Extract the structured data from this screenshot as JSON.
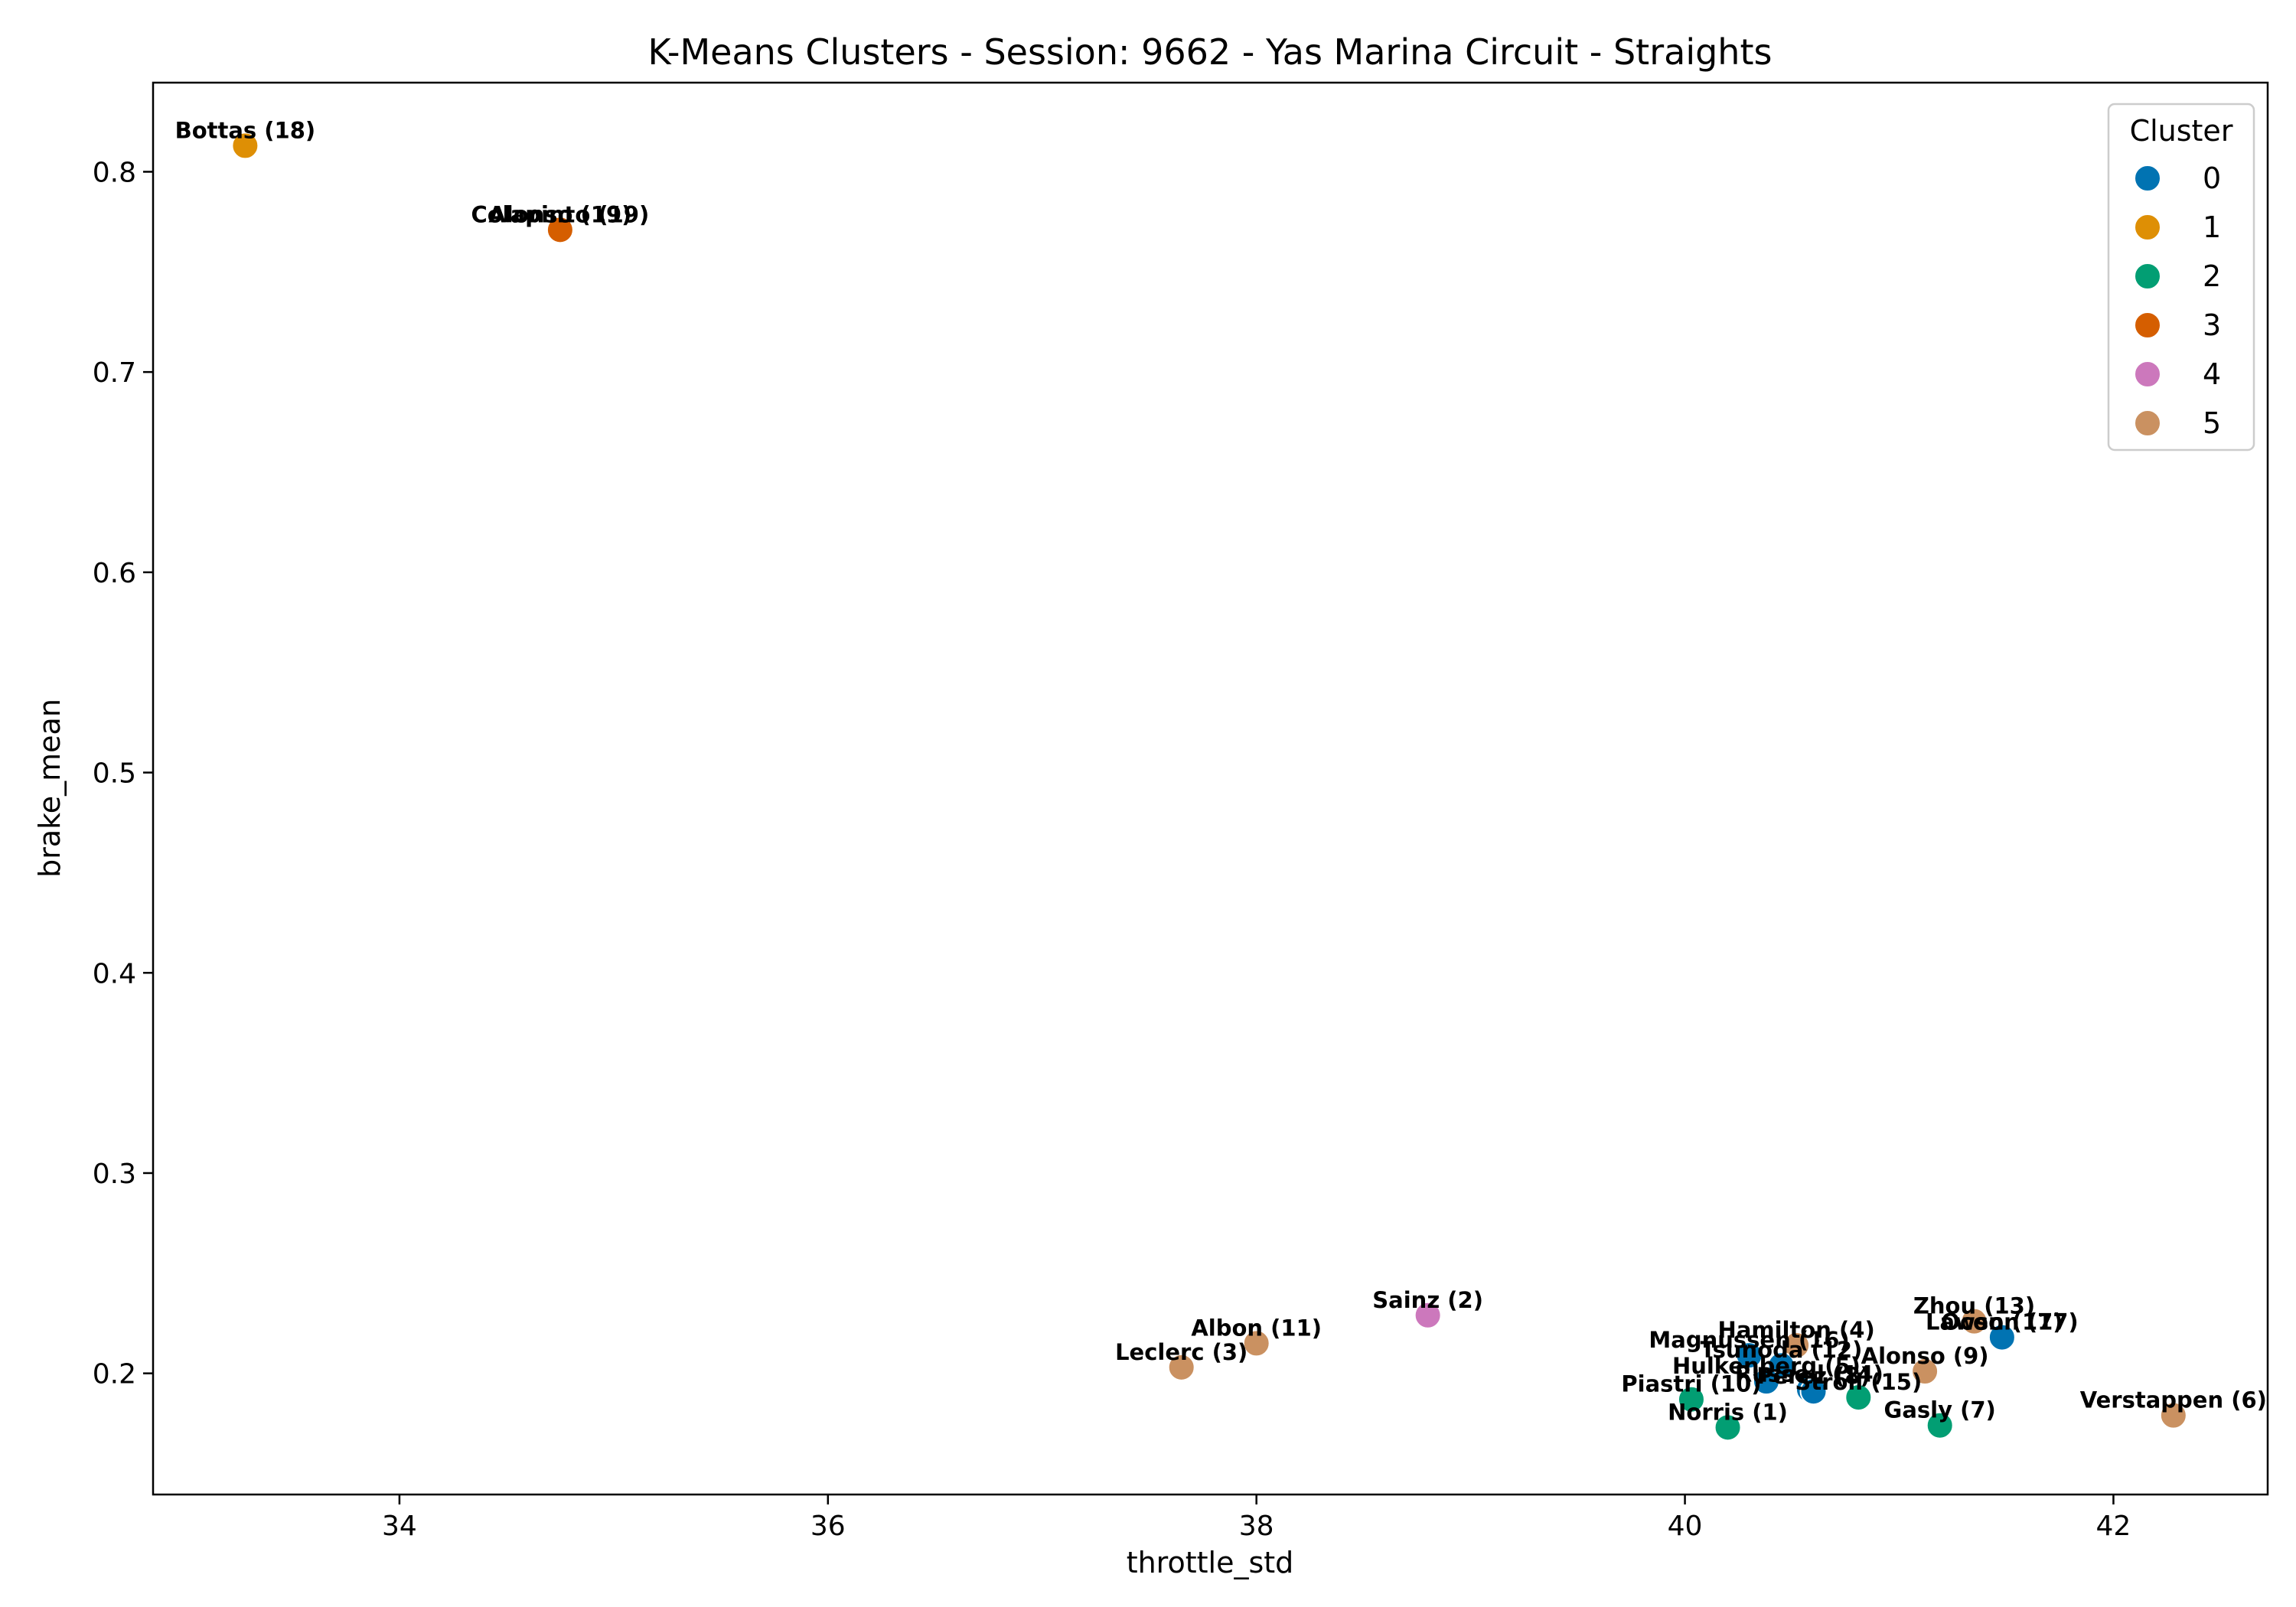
{
  "chart_data": {
    "type": "scatter",
    "title": "K-Means Clusters - Session: 9662 - Yas Marina Circuit - Straights",
    "xlabel": "throttle_std",
    "ylabel": "brake_mean",
    "xlim": [
      32.85,
      42.72
    ],
    "ylim": [
      0.1395,
      0.8445
    ],
    "xticks": [
      34,
      36,
      38,
      40,
      42
    ],
    "yticks": [
      0.2,
      0.3,
      0.4,
      0.5,
      0.6,
      0.7,
      0.8
    ],
    "xtick_labels": [
      "34",
      "36",
      "38",
      "40",
      "42"
    ],
    "ytick_labels": [
      "0.2",
      "0.3",
      "0.4",
      "0.5",
      "0.6",
      "0.7",
      "0.8"
    ],
    "grid": false,
    "legend": {
      "title": "Cluster",
      "placement": "top-right",
      "entries": [
        {
          "label": "0",
          "color": "#0173b2"
        },
        {
          "label": "1",
          "color": "#de8f05"
        },
        {
          "label": "2",
          "color": "#029e73"
        },
        {
          "label": "3",
          "color": "#d55e00"
        },
        {
          "label": "4",
          "color": "#cc78bc"
        },
        {
          "label": "5",
          "color": "#ca9161"
        }
      ]
    },
    "points": [
      {
        "label": "Bottas (18)",
        "x": 33.28,
        "y": 0.813,
        "cluster": 1
      },
      {
        "label": "Colapinto (19)",
        "x": 34.75,
        "y": 0.771,
        "cluster": 3
      },
      {
        "label": "Alonso (19)",
        "x": 34.75,
        "y": 0.771,
        "cluster": 3
      },
      {
        "label": "Sainz (2)",
        "x": 38.8,
        "y": 0.229,
        "cluster": 4
      },
      {
        "label": "Albon (11)",
        "x": 38.0,
        "y": 0.215,
        "cluster": 5
      },
      {
        "label": "Leclerc (3)",
        "x": 37.65,
        "y": 0.203,
        "cluster": 5
      },
      {
        "label": "Zhou (13)",
        "x": 41.35,
        "y": 0.226,
        "cluster": 5
      },
      {
        "label": "Lawson (17)",
        "x": 41.48,
        "y": 0.218,
        "cluster": 0
      },
      {
        "label": "Ocon (17)",
        "x": 41.48,
        "y": 0.218,
        "cluster": 0
      },
      {
        "label": "Hamilton (4)",
        "x": 40.52,
        "y": 0.214,
        "cluster": 5
      },
      {
        "label": "Magnussen (16)",
        "x": 40.3,
        "y": 0.209,
        "cluster": 0
      },
      {
        "label": "Tsunoda (12)",
        "x": 40.45,
        "y": 0.204,
        "cluster": 0
      },
      {
        "label": "Alonso (9)",
        "x": 41.12,
        "y": 0.201,
        "cluster": 5
      },
      {
        "label": "Hulkenberg (5)",
        "x": 40.38,
        "y": 0.196,
        "cluster": 0
      },
      {
        "label": "Russell (14)",
        "x": 40.58,
        "y": 0.192,
        "cluster": 0
      },
      {
        "label": "Perez (8)",
        "x": 40.6,
        "y": 0.191,
        "cluster": 0
      },
      {
        "label": "Piastri (10)",
        "x": 40.03,
        "y": 0.187,
        "cluster": 2
      },
      {
        "label": "Stroll (15)",
        "x": 40.81,
        "y": 0.188,
        "cluster": 2
      },
      {
        "label": "Norris (1)",
        "x": 40.2,
        "y": 0.173,
        "cluster": 2
      },
      {
        "label": "Gasly (7)",
        "x": 41.19,
        "y": 0.174,
        "cluster": 2
      },
      {
        "label": "Verstappen (6)",
        "x": 42.28,
        "y": 0.179,
        "cluster": 5
      }
    ]
  }
}
